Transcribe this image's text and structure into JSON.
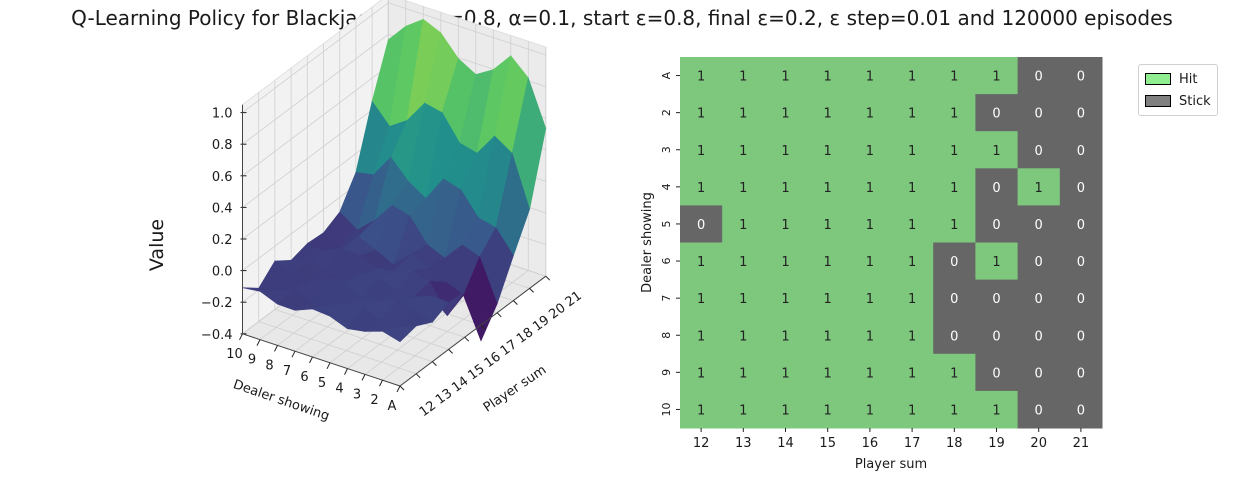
{
  "title": "Q-Learning Policy for Blackjack with γ=0.8, α=0.1, start ε=0.8, final ε=0.2, ε step=0.01 and 120000 episodes",
  "colors": {
    "hit": "#7ec87e",
    "stick": "#666666",
    "legend_hit": "#90ee90",
    "legend_stick": "#808080"
  },
  "legend": {
    "hit_label": "Hit",
    "stick_label": "Stick"
  },
  "chart_data": [
    {
      "type": "surface",
      "zlabel": "Value",
      "xlabel": "Dealer showing",
      "ylabel": "Player sum",
      "x_ticks": [
        "10",
        "9",
        "8",
        "7",
        "6",
        "5",
        "4",
        "3",
        "2",
        "A"
      ],
      "y_ticks": [
        "12",
        "13",
        "14",
        "15",
        "16",
        "17",
        "18",
        "19",
        "20",
        "21"
      ],
      "z_ticks": [
        "−0.4",
        "−0.2",
        "0.0",
        "0.2",
        "0.4",
        "0.6",
        "0.8",
        "1.0"
      ],
      "zlim": [
        -0.4,
        1.0
      ],
      "colormap": "viridis",
      "grid": true
    },
    {
      "type": "heatmap",
      "xlabel": "Player sum",
      "ylabel": "Dealer showing",
      "x_ticks": [
        "12",
        "13",
        "14",
        "15",
        "16",
        "17",
        "18",
        "19",
        "20",
        "21"
      ],
      "y_ticks": [
        "A",
        "2",
        "3",
        "4",
        "5",
        "6",
        "7",
        "8",
        "9",
        "10"
      ],
      "values": [
        [
          1,
          1,
          1,
          1,
          1,
          1,
          1,
          1,
          0,
          0
        ],
        [
          1,
          1,
          1,
          1,
          1,
          1,
          1,
          0,
          0,
          0
        ],
        [
          1,
          1,
          1,
          1,
          1,
          1,
          1,
          1,
          0,
          0
        ],
        [
          1,
          1,
          1,
          1,
          1,
          1,
          1,
          0,
          1,
          0
        ],
        [
          0,
          1,
          1,
          1,
          1,
          1,
          1,
          0,
          0,
          0
        ],
        [
          1,
          1,
          1,
          1,
          1,
          1,
          0,
          1,
          0,
          0
        ],
        [
          1,
          1,
          1,
          1,
          1,
          1,
          0,
          0,
          0,
          0
        ],
        [
          1,
          1,
          1,
          1,
          1,
          1,
          0,
          0,
          0,
          0
        ],
        [
          1,
          1,
          1,
          1,
          1,
          1,
          1,
          0,
          0,
          0
        ],
        [
          1,
          1,
          1,
          1,
          1,
          1,
          1,
          1,
          0,
          0
        ]
      ],
      "legend_placement": "upper-right-outside"
    }
  ]
}
